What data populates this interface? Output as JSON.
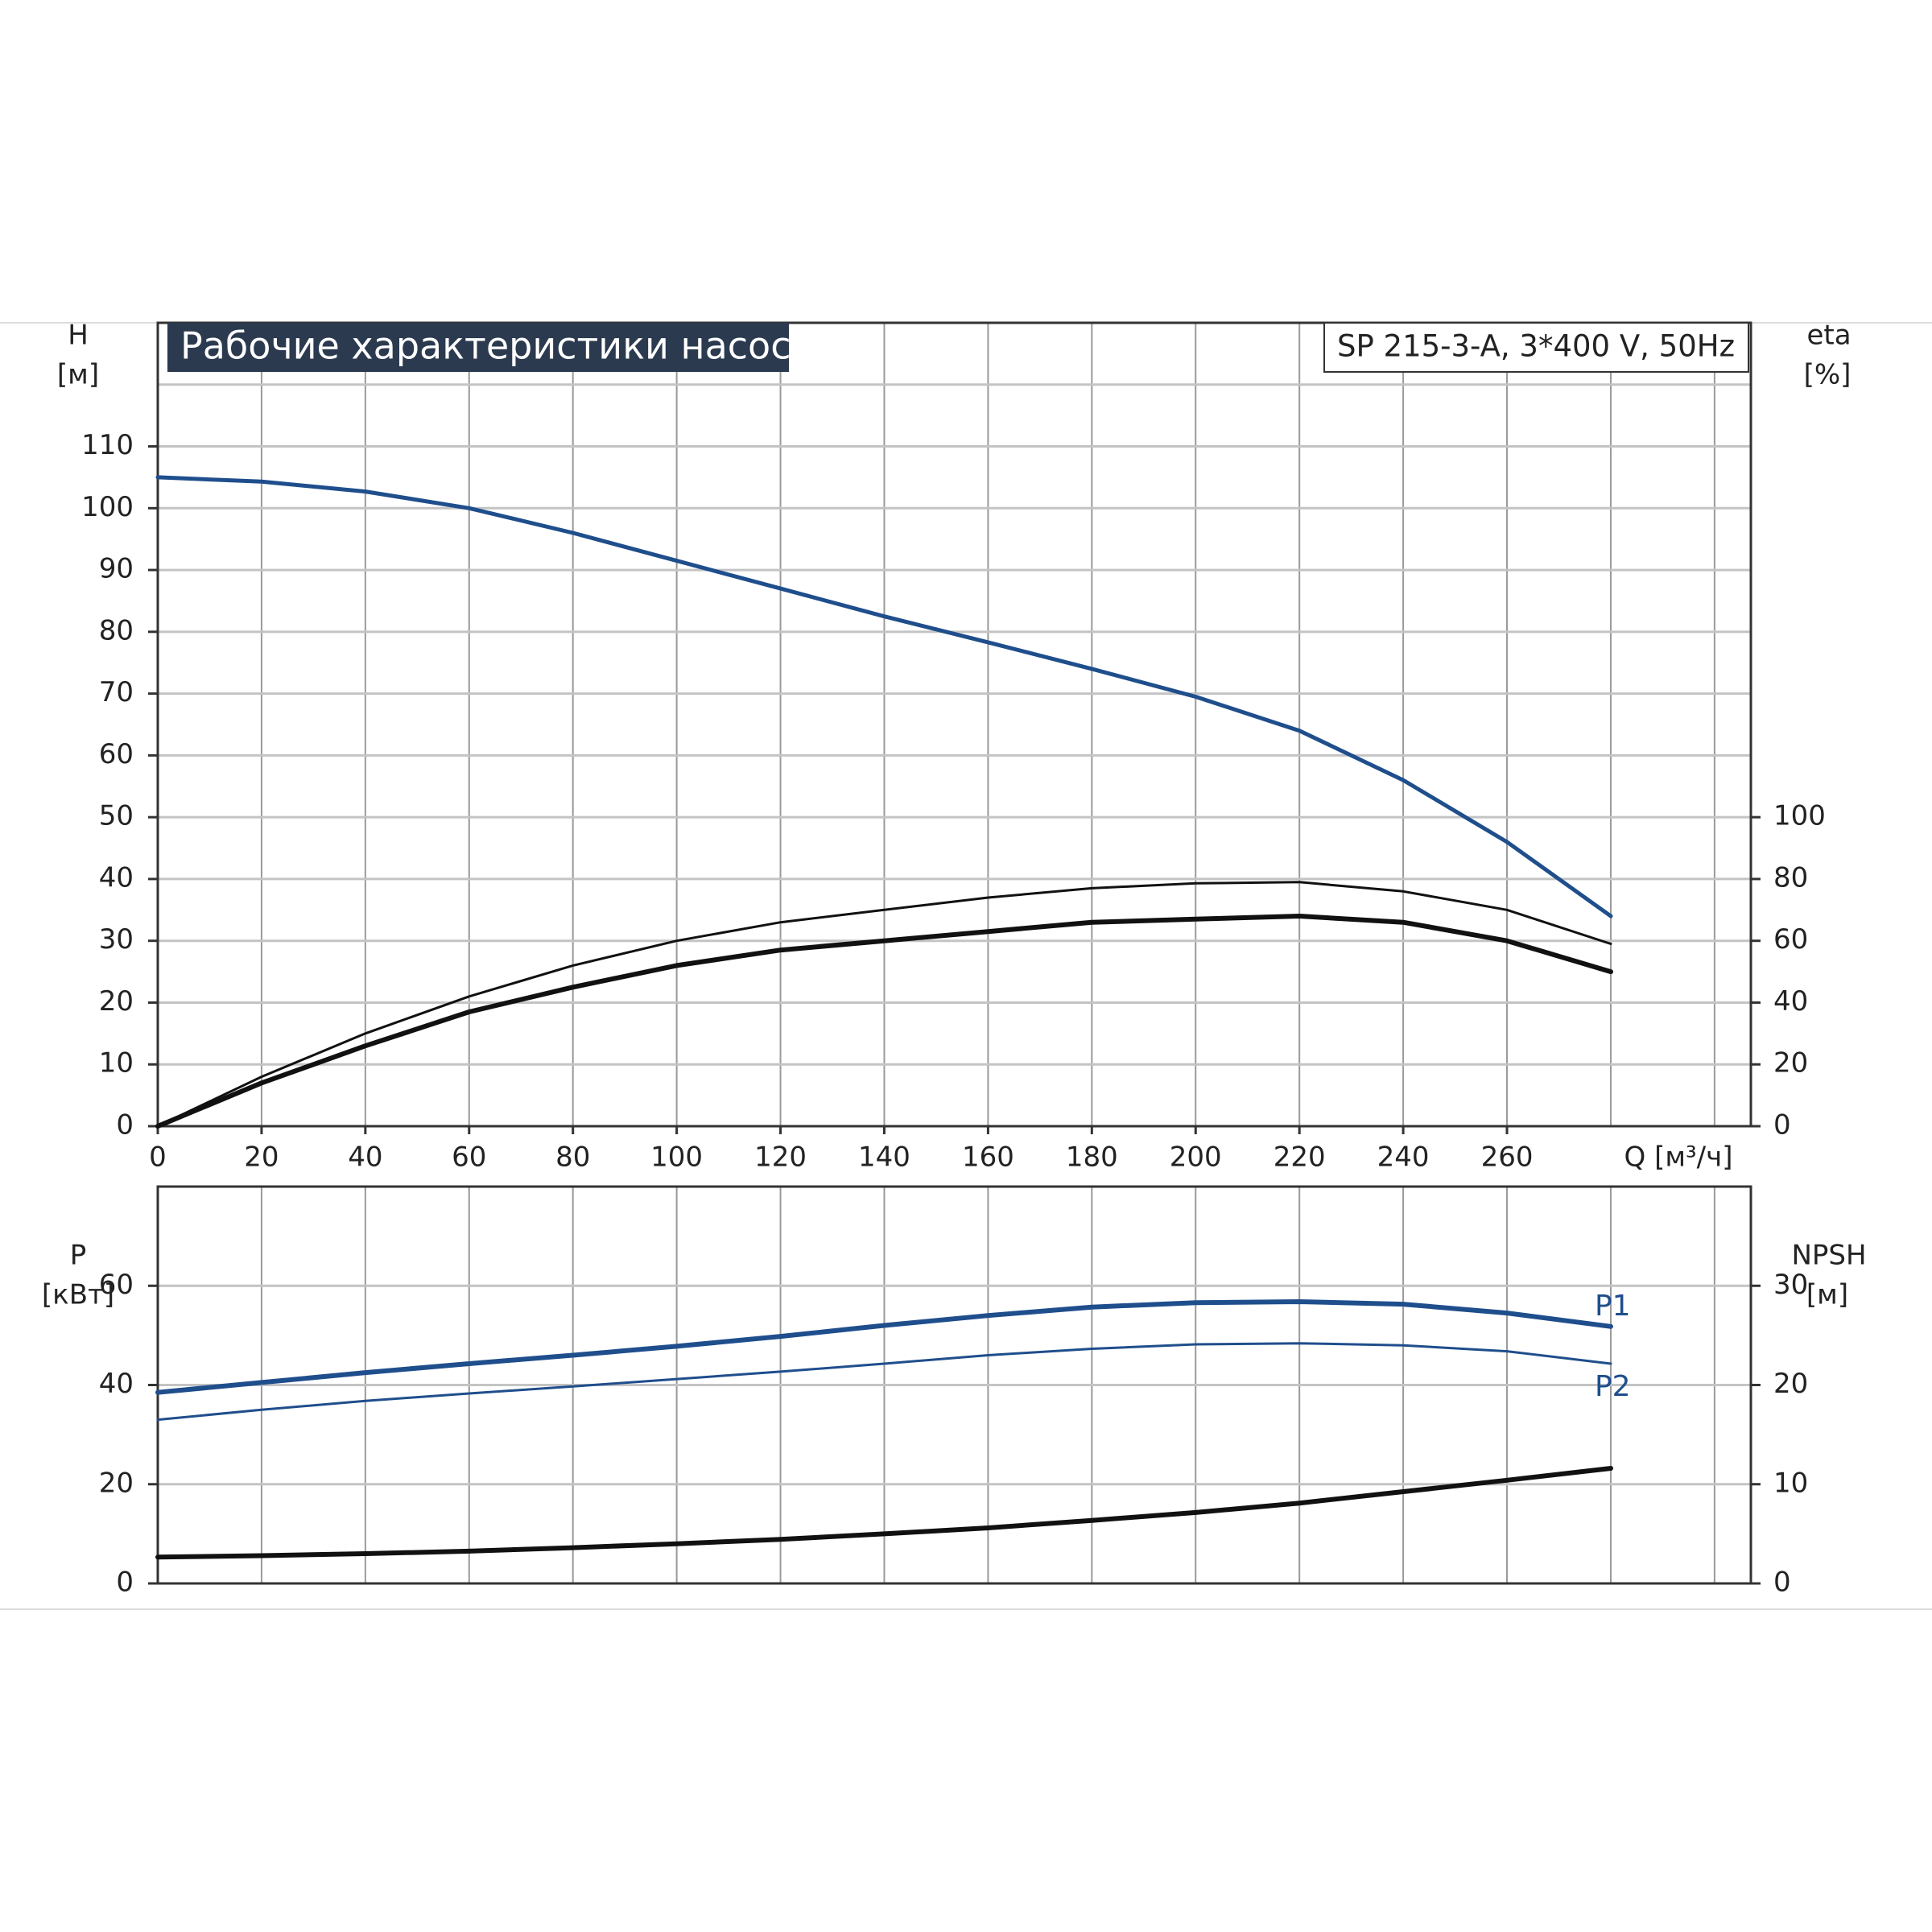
{
  "chart_data": [
    {
      "type": "line",
      "title": "Рабочие характеристики насоса",
      "subtitle": "SP 215-3-A, 3*400 V, 50Hz",
      "ylabel": "H",
      "yunit": "[м]",
      "y2label": "eta",
      "y2unit": "[%]",
      "xlabel": "Q [м³/ч]",
      "x": [
        0,
        20,
        40,
        60,
        80,
        100,
        120,
        140,
        160,
        180,
        200,
        220,
        240,
        260,
        280
      ],
      "xlim": [
        0,
        307
      ],
      "xticks": [
        0,
        20,
        40,
        60,
        80,
        100,
        120,
        140,
        160,
        180,
        200,
        220,
        240,
        260
      ],
      "xgrid": [
        0,
        20,
        40,
        60,
        80,
        100,
        120,
        140,
        160,
        180,
        200,
        220,
        240,
        260,
        280,
        300
      ],
      "ylim": [
        0,
        130
      ],
      "yticks": [
        0,
        10,
        20,
        30,
        40,
        50,
        60,
        70,
        80,
        90,
        100,
        110
      ],
      "ygrid": [
        120
      ],
      "y2lim": [
        0,
        260
      ],
      "y2ticks": [
        0,
        20,
        40,
        60,
        80,
        100
      ],
      "grid": true,
      "series": [
        {
          "color": "#1f4e8c",
          "width": 5,
          "values": [
            105,
            104.3,
            102.7,
            100,
            96,
            91.5,
            87,
            82.5,
            78.3,
            74,
            69.5,
            64,
            56,
            46,
            34
          ]
        },
        {
          "color": "#111111",
          "width": 3,
          "axis": "y2",
          "values": [
            0,
            16,
            30,
            42,
            52,
            60,
            66,
            70,
            74,
            77,
            78.6,
            79,
            76,
            70,
            59
          ]
        },
        {
          "color": "#111111",
          "width": 6,
          "axis": "y2",
          "values": [
            0,
            14,
            26,
            37,
            45,
            52,
            57,
            60,
            63,
            66,
            67,
            68,
            66,
            60,
            50
          ]
        }
      ]
    },
    {
      "type": "line",
      "ylabel": "P",
      "yunit": "[кВт]",
      "y2label": "NPSH",
      "y2unit": "[м]",
      "x": [
        0,
        20,
        40,
        60,
        80,
        100,
        120,
        140,
        160,
        180,
        200,
        220,
        240,
        260,
        280
      ],
      "xlim": [
        0,
        307
      ],
      "xgrid": [
        0,
        20,
        40,
        60,
        80,
        100,
        120,
        140,
        160,
        180,
        200,
        220,
        240,
        260,
        280,
        300
      ],
      "ylim": [
        0,
        80
      ],
      "yticks": [
        0,
        20,
        40,
        60
      ],
      "y2lim": [
        0,
        40
      ],
      "y2ticks": [
        0,
        10,
        20,
        30
      ],
      "grid": true,
      "series": [
        {
          "name": "P1",
          "color": "#1f4e8c",
          "width": 6,
          "values": [
            38.5,
            40.5,
            42.5,
            44.3,
            46,
            47.8,
            49.8,
            52,
            54,
            55.7,
            56.6,
            56.8,
            56.3,
            54.5,
            51.8
          ]
        },
        {
          "name": "P2",
          "color": "#1f4e8c",
          "width": 3,
          "values": [
            33,
            35,
            36.8,
            38.3,
            39.7,
            41.2,
            42.7,
            44.3,
            46,
            47.3,
            48.2,
            48.4,
            48,
            46.8,
            44.3
          ]
        },
        {
          "color": "#111111",
          "width": 6,
          "axis": "y2",
          "values": [
            2.65,
            2.8,
            3,
            3.25,
            3.6,
            4,
            4.45,
            5,
            5.6,
            6.35,
            7.15,
            8.1,
            9.25,
            10.4,
            11.6
          ]
        }
      ]
    }
  ]
}
